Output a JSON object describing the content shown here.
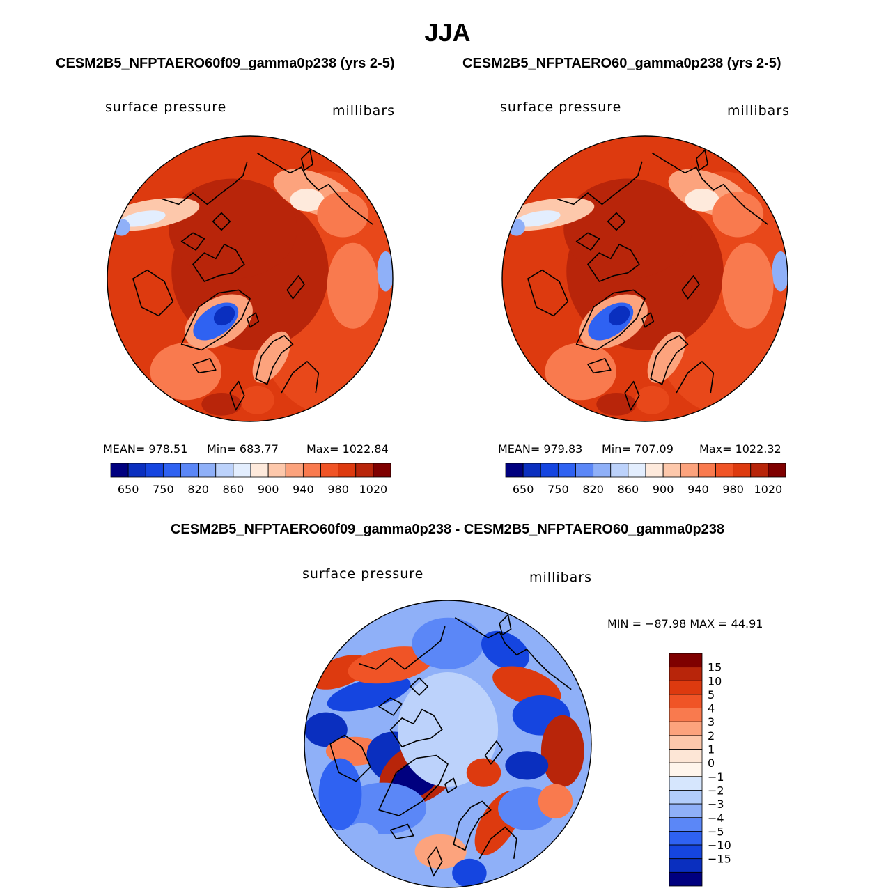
{
  "figure": {
    "season": "JJA",
    "difference_title": "CESM2B5_NFPTAERO60f09_gamma0p238 - CESM2B5_NFPTAERO60_gamma0p238"
  },
  "panels": [
    {
      "case_title": "CESM2B5_NFPTAERO60f09_gamma0p238 (yrs 2-5)",
      "variable": "surface pressure",
      "units": "millibars",
      "mean_text": "MEAN= 978.51",
      "min_text": "Min= 683.77",
      "max_text": "Max= 1022.84"
    },
    {
      "case_title": "CESM2B5_NFPTAERO60_gamma0p238 (yrs 2-5)",
      "variable": "surface pressure",
      "units": "millibars",
      "mean_text": "MEAN= 979.83",
      "min_text": "Min= 707.09",
      "max_text": "Max= 1022.32"
    }
  ],
  "diff_panel": {
    "variable": "surface pressure",
    "units": "millibars",
    "minmax_text": "MIN = −87.98 MAX =  44.91"
  },
  "chart_data": [
    {
      "type": "heatmap",
      "title": "CESM2B5_NFPTAERO60f09_gamma0p238 (yrs 2-5)",
      "projection": "north polar stereographic",
      "variable": "surface pressure",
      "units": "millibars",
      "mean": 978.51,
      "min": 683.77,
      "max": 1022.84,
      "colorbar_labels": [
        "650",
        "750",
        "820",
        "860",
        "900",
        "940",
        "980",
        "1020"
      ],
      "colorbar_colors": [
        "#00007f",
        "#0a2fbf",
        "#1545e0",
        "#2f62f2",
        "#5b87f7",
        "#8fb0f8",
        "#bcd2fb",
        "#e3eefe",
        "#feeadc",
        "#fdc8ab",
        "#fca37d",
        "#f97a4e",
        "#f05426",
        "#dd3a0f",
        "#b8250a",
        "#7f0000"
      ]
    },
    {
      "type": "heatmap",
      "title": "CESM2B5_NFPTAERO60_gamma0p238 (yrs 2-5)",
      "projection": "north polar stereographic",
      "variable": "surface pressure",
      "units": "millibars",
      "mean": 979.83,
      "min": 707.09,
      "max": 1022.32,
      "colorbar_labels": [
        "650",
        "750",
        "820",
        "860",
        "900",
        "940",
        "980",
        "1020"
      ],
      "colorbar_colors": [
        "#00007f",
        "#0a2fbf",
        "#1545e0",
        "#2f62f2",
        "#5b87f7",
        "#8fb0f8",
        "#bcd2fb",
        "#e3eefe",
        "#feeadc",
        "#fdc8ab",
        "#fca37d",
        "#f97a4e",
        "#f05426",
        "#dd3a0f",
        "#b8250a",
        "#7f0000"
      ]
    },
    {
      "type": "heatmap",
      "title": "CESM2B5_NFPTAERO60f09_gamma0p238 - CESM2B5_NFPTAERO60_gamma0p238",
      "projection": "north polar stereographic",
      "variable": "surface pressure",
      "units": "millibars",
      "min": -87.98,
      "max": 44.91,
      "colorbar_labels": [
        "15",
        "10",
        "5",
        "4",
        "3",
        "2",
        "1",
        "0",
        "−1",
        "−2",
        "−3",
        "−4",
        "−5",
        "−10",
        "−15"
      ],
      "colorbar_colors": [
        "#7f0000",
        "#b8250a",
        "#dd3a0f",
        "#f05426",
        "#f97a4e",
        "#fca37d",
        "#fdc8ab",
        "#fde6d6",
        "#fff5ec",
        "#d6e6fd",
        "#b2cdfb",
        "#8fb0f8",
        "#5b87f7",
        "#2f62f2",
        "#1545e0",
        "#0a2fbf",
        "#00007f"
      ]
    }
  ]
}
